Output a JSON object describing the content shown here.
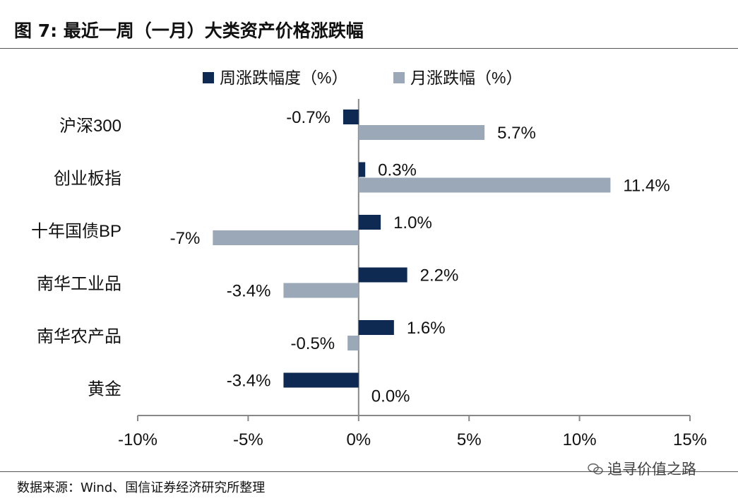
{
  "header": {
    "title": "图 7:  最近一周（一月）大类资产价格涨跌幅"
  },
  "footer": {
    "source": "数据来源：Wind、国信证券经济研究所整理"
  },
  "watermark": {
    "text": "追寻价值之路",
    "icon": "wechat-icon"
  },
  "chart_data": {
    "type": "bar",
    "orientation": "horizontal",
    "categories": [
      "沪深300",
      "创业板指",
      "十年国债BP",
      "南华工业品",
      "南华农产品",
      "黄金"
    ],
    "series": [
      {
        "name": "周涨跌幅度（%）",
        "color": "#0e2a52",
        "values": [
          -0.7,
          0.3,
          1.0,
          2.2,
          1.6,
          -3.4
        ],
        "labels": [
          "-0.7%",
          "0.3%",
          "1.0%",
          "2.2%",
          "1.6%",
          "-3.4%"
        ]
      },
      {
        "name": "月涨跌幅（%）",
        "color": "#9aa8b8",
        "values": [
          5.7,
          11.4,
          -6.6,
          -3.4,
          -0.5,
          0.0
        ],
        "labels": [
          "5.7%",
          "11.4%",
          "-7%",
          "-3.4%",
          "-0.5%",
          "0.0%"
        ]
      }
    ],
    "xlim": [
      -10,
      15
    ],
    "xticks": [
      -10,
      -5,
      0,
      5,
      10,
      15
    ],
    "xtick_labels": [
      "-10%",
      "-5%",
      "0%",
      "5%",
      "10%",
      "15%"
    ],
    "legend_position": "top",
    "grid": false
  }
}
